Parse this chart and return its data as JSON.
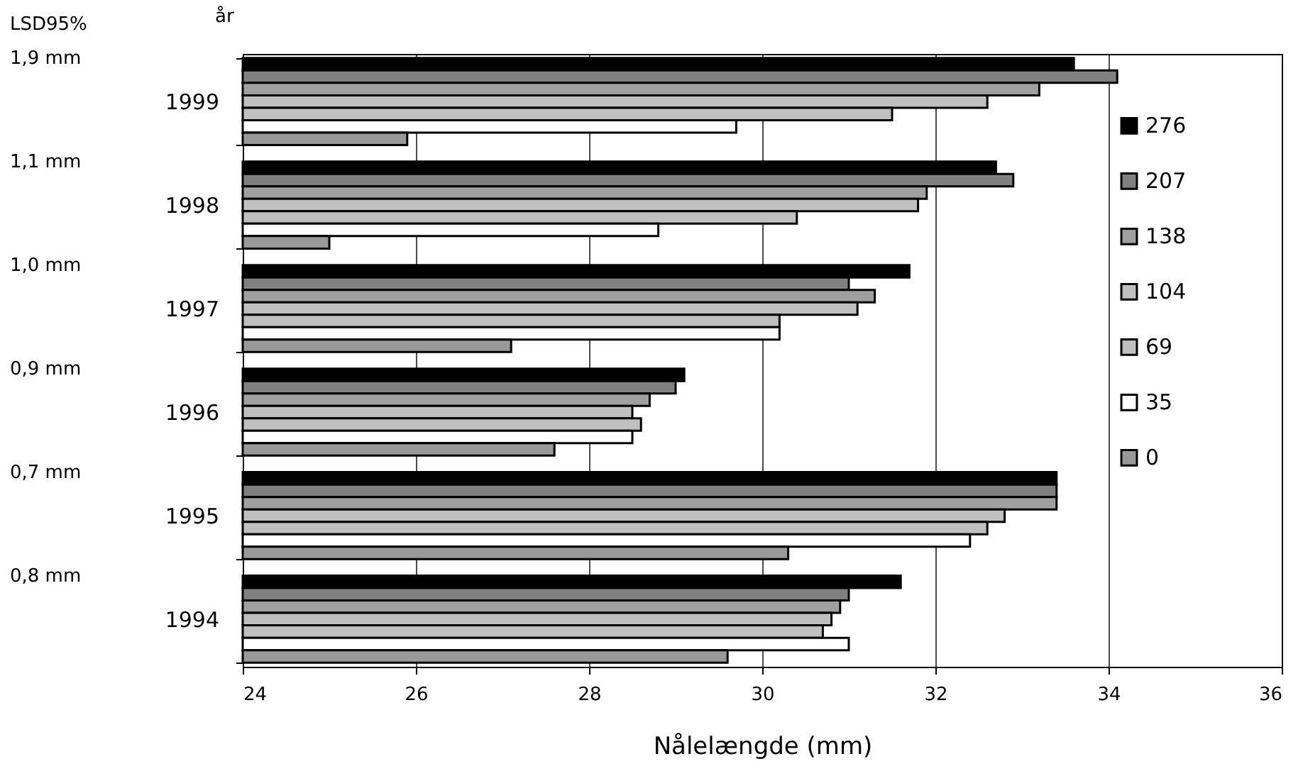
{
  "chart_data": {
    "type": "bar",
    "orientation": "horizontal",
    "xlabel": "Nålelængde (mm)",
    "ylabel": "år",
    "categories": [
      "1999",
      "1998",
      "1997",
      "1996",
      "1995",
      "1994"
    ],
    "series": [
      {
        "name": "276",
        "color": "#000000",
        "values": [
          33.6,
          32.7,
          31.7,
          29.1,
          33.4,
          31.6
        ]
      },
      {
        "name": "207",
        "color": "#808080",
        "values": [
          34.1,
          32.9,
          31.0,
          29.0,
          33.4,
          31.0
        ]
      },
      {
        "name": "138",
        "color": "#a0a0a0",
        "values": [
          33.2,
          31.9,
          31.3,
          28.7,
          33.4,
          30.9
        ]
      },
      {
        "name": "104",
        "color": "#c0c0c0",
        "values": [
          32.6,
          31.8,
          31.1,
          28.5,
          32.8,
          30.8
        ]
      },
      {
        "name": "69",
        "color": "#c0c0c0",
        "values": [
          31.5,
          30.4,
          30.2,
          28.6,
          32.6,
          30.7
        ]
      },
      {
        "name": "35",
        "color": "#ffffff",
        "values": [
          29.7,
          28.8,
          30.2,
          28.5,
          32.4,
          31.0
        ]
      },
      {
        "name": "0",
        "color": "#999999",
        "values": [
          25.9,
          25.0,
          27.1,
          27.6,
          30.3,
          29.6
        ]
      }
    ],
    "xlim": [
      24,
      36
    ],
    "xticks": [
      24,
      26,
      28,
      30,
      32,
      34,
      36
    ],
    "grid": "x",
    "legend": "right",
    "annotations": [
      "LSD95%",
      "1,9 mm",
      "1,1 mm",
      "1,0 mm",
      "0,9 mm",
      "0,7 mm",
      "0,8 mm"
    ]
  }
}
